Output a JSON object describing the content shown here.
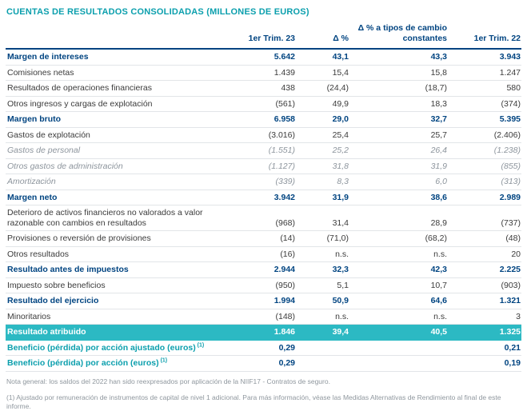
{
  "title": "CUENTAS DE RESULTADOS CONSOLIDADAS (MILLONES DE EUROS)",
  "colors": {
    "navy": "#004481",
    "teal": "#0b9fad",
    "band": "#2cb9c3"
  },
  "table": {
    "headers": [
      "",
      "1er Trim. 23",
      "Δ %",
      "Δ % a tipos de cambio constantes",
      "1er Trim. 22"
    ],
    "rows": [
      {
        "label": "Margen de intereses",
        "style": "bold",
        "values": [
          "5.642",
          "43,1",
          "43,3",
          "3.943"
        ]
      },
      {
        "label": "Comisiones netas",
        "style": "normal",
        "values": [
          "1.439",
          "15,4",
          "15,8",
          "1.247"
        ]
      },
      {
        "label": "Resultados de operaciones financieras",
        "style": "normal",
        "values": [
          "438",
          "(24,4)",
          "(18,7)",
          "580"
        ]
      },
      {
        "label": "Otros ingresos y cargas de explotación",
        "style": "normal",
        "values": [
          "(561)",
          "49,9",
          "18,3",
          "(374)"
        ]
      },
      {
        "label": "Margen bruto",
        "style": "bold",
        "values": [
          "6.958",
          "29,0",
          "32,7",
          "5.395"
        ]
      },
      {
        "label": "Gastos de explotación",
        "style": "normal",
        "values": [
          "(3.016)",
          "25,4",
          "25,7",
          "(2.406)"
        ]
      },
      {
        "label": "Gastos de personal",
        "style": "sub",
        "values": [
          "(1.551)",
          "25,2",
          "26,4",
          "(1.238)"
        ]
      },
      {
        "label": "Otros gastos de administración",
        "style": "sub",
        "values": [
          "(1.127)",
          "31,8",
          "31,9",
          "(855)"
        ]
      },
      {
        "label": "Amortización",
        "style": "sub",
        "values": [
          "(339)",
          "8,3",
          "6,0",
          "(313)"
        ]
      },
      {
        "label": "Margen neto",
        "style": "bold",
        "values": [
          "3.942",
          "31,9",
          "38,6",
          "2.989"
        ]
      },
      {
        "label": "Deterioro de activos financieros no valorados a valor razonable con cambios en resultados",
        "style": "normal",
        "values": [
          "(968)",
          "31,4",
          "28,9",
          "(737)"
        ]
      },
      {
        "label": "Provisiones o reversión de provisiones",
        "style": "normal",
        "values": [
          "(14)",
          "(71,0)",
          "(68,2)",
          "(48)"
        ]
      },
      {
        "label": "Otros resultados",
        "style": "normal",
        "values": [
          "(16)",
          "n.s.",
          "n.s.",
          "20"
        ]
      },
      {
        "label": "Resultado antes de impuestos",
        "style": "bold",
        "values": [
          "2.944",
          "32,3",
          "42,3",
          "2.225"
        ]
      },
      {
        "label": "Impuesto sobre beneficios",
        "style": "normal",
        "values": [
          "(950)",
          "5,1",
          "10,7",
          "(903)"
        ]
      },
      {
        "label": "Resultado del ejercicio",
        "style": "bold",
        "values": [
          "1.994",
          "50,9",
          "64,6",
          "1.321"
        ]
      },
      {
        "label": "Minoritarios",
        "style": "normal",
        "values": [
          "(148)",
          "n.s.",
          "n.s.",
          "3"
        ]
      },
      {
        "label": "Resultado atribuido",
        "style": "highlight",
        "values": [
          "1.846",
          "39,4",
          "40,5",
          "1.325"
        ]
      },
      {
        "label": "Beneficio (pérdida) por acción ajustado (euros)",
        "sup": "(1)",
        "style": "eps",
        "values": [
          "0,29",
          "",
          "",
          "0,21"
        ]
      },
      {
        "label": "Beneficio (pérdida) por acción (euros)",
        "sup": "(1)",
        "style": "eps",
        "values": [
          "0,29",
          "",
          "",
          "0,19"
        ]
      }
    ]
  },
  "footnotes": [
    "Nota general: los saldos del 2022 han sido reexpresados por aplicación de la NIIF17 - Contratos de seguro.",
    "(1) Ajustado por remuneración de instrumentos de capital de nivel 1 adicional. Para más información, véase las Medidas Alternativas de Rendimiento al final de este informe."
  ]
}
